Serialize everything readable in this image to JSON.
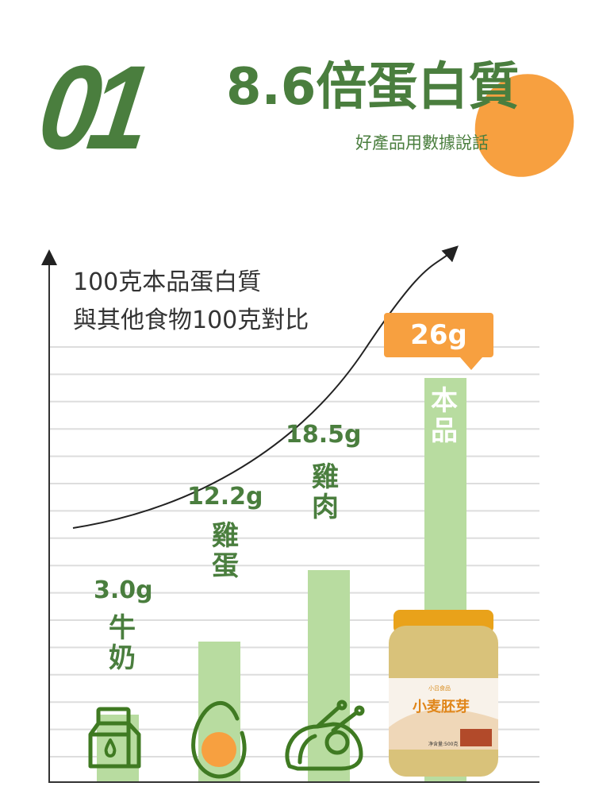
{
  "header": {
    "number": "01",
    "title": "8.6倍蛋白質",
    "subtitle": "好產品用數據說話"
  },
  "colors": {
    "green_text": "#4a7e3e",
    "bar": "#b8dca0",
    "accent_orange": "#f7a040",
    "grid": "#dddddd",
    "axis": "#333333"
  },
  "chart_data": {
    "type": "bar",
    "note_lines": [
      "100克本品蛋白質",
      "與其他食物100克對比"
    ],
    "categories": [
      "牛奶",
      "雞蛋",
      "雞肉",
      "本品"
    ],
    "values": [
      3.0,
      12.2,
      18.5,
      26
    ],
    "value_labels": [
      "3.0g",
      "12.2g",
      "18.5g",
      "26g"
    ],
    "unit": "g",
    "icons": [
      "milk-carton-icon",
      "egg-icon",
      "chicken-icon",
      "product-jar-image"
    ],
    "trend_arrow": "rising curve",
    "grid": true,
    "highlight": "本品"
  },
  "product": {
    "brand": "小吕食品",
    "name": "小麦胚芽",
    "net": "净含量:500克"
  }
}
